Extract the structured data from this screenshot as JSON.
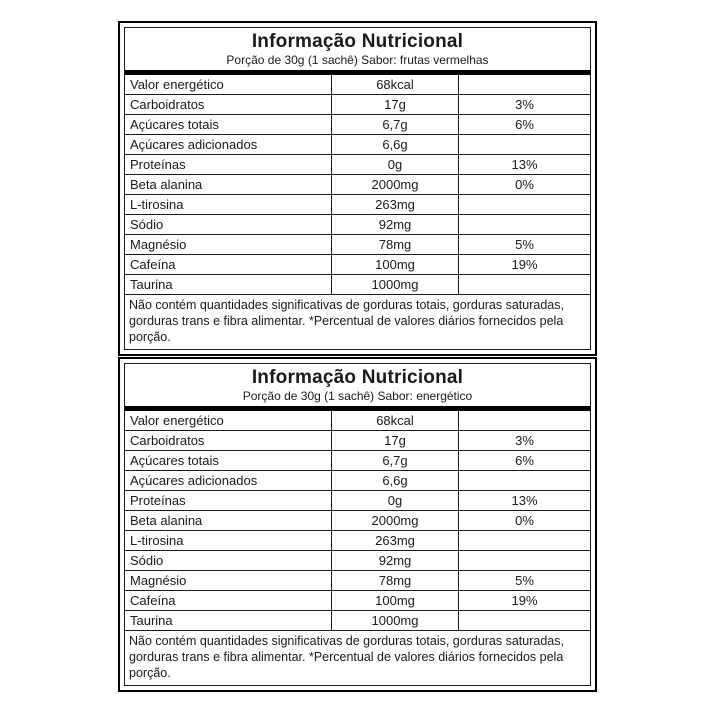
{
  "colors": {
    "background": "#ffffff",
    "border": "#000000",
    "text": "#1a1a1a"
  },
  "tables": [
    {
      "title": "Informação Nutricional",
      "subtitle": "Porção de 30g (1 sachê) Sabor: frutas vermelhas",
      "rows": [
        {
          "name": "Valor energético",
          "amount": "68kcal",
          "dv": ""
        },
        {
          "name": "Carboidratos",
          "amount": "17g",
          "dv": "3%"
        },
        {
          "name": "Açúcares totais",
          "amount": "6,7g",
          "dv": "6%"
        },
        {
          "name": "Açúcares adicionados",
          "amount": "6,6g",
          "dv": ""
        },
        {
          "name": "Proteínas",
          "amount": "0g",
          "dv": "13%"
        },
        {
          "name": "Beta alanina",
          "amount": "2000mg",
          "dv": "0%"
        },
        {
          "name": "L-tirosina",
          "amount": "263mg",
          "dv": ""
        },
        {
          "name": "Sódio",
          "amount": "92mg",
          "dv": ""
        },
        {
          "name": "Magnésio",
          "amount": "78mg",
          "dv": "5%"
        },
        {
          "name": "Cafeína",
          "amount": "100mg",
          "dv": "19%"
        },
        {
          "name": "Taurina",
          "amount": "1000mg",
          "dv": ""
        }
      ],
      "footer": "Não contém quantidades significativas de gorduras totais, gorduras saturadas, gorduras trans e fibra alimentar. *Percentual de valores diários fornecidos pela porção."
    },
    {
      "title": "Informação Nutricional",
      "subtitle": "Porção de 30g (1 sachê) Sabor: energético",
      "rows": [
        {
          "name": "Valor energético",
          "amount": "68kcal",
          "dv": ""
        },
        {
          "name": "Carboidratos",
          "amount": "17g",
          "dv": "3%"
        },
        {
          "name": "Açúcares totais",
          "amount": "6,7g",
          "dv": "6%"
        },
        {
          "name": "Açúcares adicionados",
          "amount": "6,6g",
          "dv": ""
        },
        {
          "name": "Proteínas",
          "amount": "0g",
          "dv": "13%"
        },
        {
          "name": "Beta alanina",
          "amount": "2000mg",
          "dv": "0%"
        },
        {
          "name": "L-tirosina",
          "amount": "263mg",
          "dv": ""
        },
        {
          "name": "Sódio",
          "amount": "92mg",
          "dv": ""
        },
        {
          "name": "Magnésio",
          "amount": "78mg",
          "dv": "5%"
        },
        {
          "name": "Cafeína",
          "amount": "100mg",
          "dv": "19%"
        },
        {
          "name": "Taurina",
          "amount": "1000mg",
          "dv": ""
        }
      ],
      "footer": "Não contém quantidades significativas de gorduras totais, gorduras saturadas, gorduras trans e fibra alimentar. *Percentual de valores diários fornecidos pela porção."
    }
  ]
}
